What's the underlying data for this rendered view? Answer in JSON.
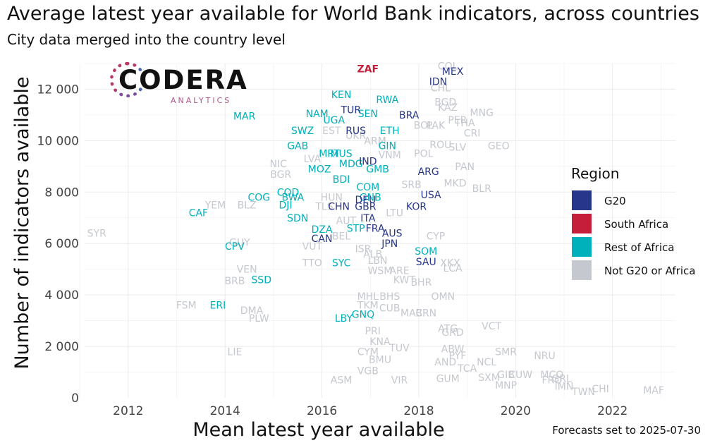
{
  "title": "Average latest year available for World Bank indicators, across countries",
  "subtitle": "City data merged into the country level",
  "caption": "Forecasts set to 2025-07-30",
  "logo": {
    "name": "CODERA",
    "tagline": "ANALYTICS"
  },
  "chart_data": {
    "type": "scatter",
    "xlabel": "Mean latest year available",
    "ylabel": "Number of indicators available",
    "xlim": [
      2011.1,
      2023.3
    ],
    "ylim": [
      0,
      13000
    ],
    "xticks": [
      {
        "value": 2012,
        "label": "2012"
      },
      {
        "value": 2014,
        "label": "2014"
      },
      {
        "value": 2016,
        "label": "2016"
      },
      {
        "value": 2018,
        "label": "2018"
      },
      {
        "value": 2020,
        "label": "2020"
      },
      {
        "value": 2022,
        "label": "2022"
      }
    ],
    "yticks": [
      {
        "value": 0,
        "label": "0"
      },
      {
        "value": 2000,
        "label": "2 000"
      },
      {
        "value": 4000,
        "label": "4 000"
      },
      {
        "value": 6000,
        "label": "6 000"
      },
      {
        "value": 8000,
        "label": "8 000"
      },
      {
        "value": 10000,
        "label": "10 000"
      },
      {
        "value": 12000,
        "label": "12 000"
      }
    ],
    "grid": true,
    "legend": {
      "title": "Region",
      "position": "right",
      "entries": [
        {
          "name": "G20",
          "color": "#27368a"
        },
        {
          "name": "South Africa",
          "color": "#c41e3a"
        },
        {
          "name": "Rest of Africa",
          "color": "#00b0bb"
        },
        {
          "name": "Not G20 or Africa",
          "color": "#c5c8ce"
        }
      ]
    },
    "points": [
      {
        "label": "ZAF",
        "x": 2016.95,
        "y": 12800,
        "group": "South Africa"
      },
      {
        "label": "MEX",
        "x": 2018.7,
        "y": 12700,
        "group": "G20"
      },
      {
        "label": "IDN",
        "x": 2018.4,
        "y": 12300,
        "group": "G20"
      },
      {
        "label": "TUR",
        "x": 2016.6,
        "y": 11200,
        "group": "G20"
      },
      {
        "label": "BRA",
        "x": 2017.8,
        "y": 11000,
        "group": "G20"
      },
      {
        "label": "RUS",
        "x": 2016.7,
        "y": 10400,
        "group": "G20"
      },
      {
        "label": "IND",
        "x": 2016.95,
        "y": 9200,
        "group": "G20"
      },
      {
        "label": "ARG",
        "x": 2018.2,
        "y": 8800,
        "group": "G20"
      },
      {
        "label": "USA",
        "x": 2018.25,
        "y": 7900,
        "group": "G20"
      },
      {
        "label": "DEU",
        "x": 2016.9,
        "y": 7700,
        "group": "G20"
      },
      {
        "label": "CHN",
        "x": 2016.35,
        "y": 7450,
        "group": "G20"
      },
      {
        "label": "GBR",
        "x": 2016.9,
        "y": 7450,
        "group": "G20"
      },
      {
        "label": "KOR",
        "x": 2017.95,
        "y": 7450,
        "group": "G20"
      },
      {
        "label": "ITA",
        "x": 2016.95,
        "y": 7000,
        "group": "G20"
      },
      {
        "label": "FRA",
        "x": 2017.1,
        "y": 6600,
        "group": "G20"
      },
      {
        "label": "AUS",
        "x": 2017.45,
        "y": 6400,
        "group": "G20"
      },
      {
        "label": "CAN",
        "x": 2016,
        "y": 6200,
        "group": "G20"
      },
      {
        "label": "JPN",
        "x": 2017.4,
        "y": 6000,
        "group": "G20"
      },
      {
        "label": "SAU",
        "x": 2018.15,
        "y": 5300,
        "group": "G20"
      },
      {
        "label": "KEN",
        "x": 2016.4,
        "y": 11800,
        "group": "Rest of Africa"
      },
      {
        "label": "RWA",
        "x": 2017.35,
        "y": 11600,
        "group": "Rest of Africa"
      },
      {
        "label": "NAM",
        "x": 2015.9,
        "y": 11050,
        "group": "Rest of Africa"
      },
      {
        "label": "SEN",
        "x": 2016.95,
        "y": 11050,
        "group": "Rest of Africa"
      },
      {
        "label": "UGA",
        "x": 2016.25,
        "y": 10800,
        "group": "Rest of Africa"
      },
      {
        "label": "MAR",
        "x": 2014.4,
        "y": 10950,
        "group": "Rest of Africa"
      },
      {
        "label": "SWZ",
        "x": 2015.6,
        "y": 10400,
        "group": "Rest of Africa"
      },
      {
        "label": "ETH",
        "x": 2017.4,
        "y": 10400,
        "group": "Rest of Africa"
      },
      {
        "label": "GAB",
        "x": 2015.5,
        "y": 9800,
        "group": "Rest of Africa"
      },
      {
        "label": "GIN",
        "x": 2017.35,
        "y": 9800,
        "group": "Rest of Africa"
      },
      {
        "label": "MRT",
        "x": 2016.15,
        "y": 9500,
        "group": "Rest of Africa"
      },
      {
        "label": "MUS",
        "x": 2016.4,
        "y": 9500,
        "group": "Rest of Africa"
      },
      {
        "label": "MOZ",
        "x": 2015.95,
        "y": 8900,
        "group": "Rest of Africa"
      },
      {
        "label": "MDG",
        "x": 2016.6,
        "y": 9100,
        "group": "Rest of Africa"
      },
      {
        "label": "GMB",
        "x": 2017.15,
        "y": 8900,
        "group": "Rest of Africa"
      },
      {
        "label": "BDI",
        "x": 2016.4,
        "y": 8500,
        "group": "Rest of Africa"
      },
      {
        "label": "COM",
        "x": 2016.95,
        "y": 8200,
        "group": "Rest of Africa"
      },
      {
        "label": "GNB",
        "x": 2017,
        "y": 7800,
        "group": "Rest of Africa"
      },
      {
        "label": "COG",
        "x": 2014.7,
        "y": 7800,
        "group": "Rest of Africa"
      },
      {
        "label": "COD",
        "x": 2015.3,
        "y": 8000,
        "group": "Rest of Africa"
      },
      {
        "label": "BWA",
        "x": 2015.4,
        "y": 7800,
        "group": "Rest of Africa"
      },
      {
        "label": "DJI",
        "x": 2015.25,
        "y": 7500,
        "group": "Rest of Africa"
      },
      {
        "label": "CAF",
        "x": 2013.45,
        "y": 7200,
        "group": "Rest of Africa"
      },
      {
        "label": "SDN",
        "x": 2015.5,
        "y": 7000,
        "group": "Rest of Africa"
      },
      {
        "label": "DZA",
        "x": 2016,
        "y": 6550,
        "group": "Rest of Africa"
      },
      {
        "label": "STP",
        "x": 2016.7,
        "y": 6600,
        "group": "Rest of Africa"
      },
      {
        "label": "CPV",
        "x": 2014.2,
        "y": 5900,
        "group": "Rest of Africa"
      },
      {
        "label": "SOM",
        "x": 2018.15,
        "y": 5700,
        "group": "Rest of Africa"
      },
      {
        "label": "SYC",
        "x": 2016.4,
        "y": 5250,
        "group": "Rest of Africa"
      },
      {
        "label": "SSD",
        "x": 2014.75,
        "y": 4600,
        "group": "Rest of Africa"
      },
      {
        "label": "ERI",
        "x": 2013.85,
        "y": 3600,
        "group": "Rest of Africa"
      },
      {
        "label": "LBY",
        "x": 2016.45,
        "y": 3100,
        "group": "Rest of Africa"
      },
      {
        "label": "GNQ",
        "x": 2016.85,
        "y": 3250,
        "group": "Rest of Africa"
      },
      {
        "label": "COL",
        "x": 2018.6,
        "y": 12900,
        "group": "Not G20 or Africa"
      },
      {
        "label": "CHL",
        "x": 2018.45,
        "y": 12050,
        "group": "Not G20 or Africa"
      },
      {
        "label": "BGD",
        "x": 2018.55,
        "y": 11500,
        "group": "Not G20 or Africa"
      },
      {
        "label": "KAZ",
        "x": 2018.6,
        "y": 11300,
        "group": "Not G20 or Africa"
      },
      {
        "label": "MNG",
        "x": 2019.3,
        "y": 11100,
        "group": "Not G20 or Africa"
      },
      {
        "label": "PER",
        "x": 2018.8,
        "y": 10800,
        "group": "Not G20 or Africa"
      },
      {
        "label": "THA",
        "x": 2018.95,
        "y": 10700,
        "group": "Not G20 or Africa"
      },
      {
        "label": "CRI",
        "x": 2019.1,
        "y": 10300,
        "group": "Not G20 or Africa"
      },
      {
        "label": "BOL",
        "x": 2018.1,
        "y": 10600,
        "group": "Not G20 or Africa"
      },
      {
        "label": "PAK",
        "x": 2018.35,
        "y": 10600,
        "group": "Not G20 or Africa"
      },
      {
        "label": "GEO",
        "x": 2019.65,
        "y": 9800,
        "group": "Not G20 or Africa"
      },
      {
        "label": "SLV",
        "x": 2018.8,
        "y": 9750,
        "group": "Not G20 or Africa"
      },
      {
        "label": "ROU",
        "x": 2018.45,
        "y": 9850,
        "group": "Not G20 or Africa"
      },
      {
        "label": "POL",
        "x": 2018.1,
        "y": 9500,
        "group": "Not G20 or Africa"
      },
      {
        "label": "VNM",
        "x": 2017.4,
        "y": 9450,
        "group": "Not G20 or Africa"
      },
      {
        "label": "PAN",
        "x": 2018.95,
        "y": 9000,
        "group": "Not G20 or Africa"
      },
      {
        "label": "NIC",
        "x": 2015.1,
        "y": 9100,
        "group": "Not G20 or Africa"
      },
      {
        "label": "BGR",
        "x": 2015.15,
        "y": 8700,
        "group": "Not G20 or Africa"
      },
      {
        "label": "SRB",
        "x": 2017.85,
        "y": 8300,
        "group": "Not G20 or Africa"
      },
      {
        "label": "MKD",
        "x": 2018.75,
        "y": 8350,
        "group": "Not G20 or Africa"
      },
      {
        "label": "BLR",
        "x": 2019.3,
        "y": 8150,
        "group": "Not G20 or Africa"
      },
      {
        "label": "YEM",
        "x": 2013.8,
        "y": 7500,
        "group": "Not G20 or Africa"
      },
      {
        "label": "BLZ",
        "x": 2014.45,
        "y": 7500,
        "group": "Not G20 or Africa"
      },
      {
        "label": "TLS",
        "x": 2016.05,
        "y": 7450,
        "group": "Not G20 or Africa"
      },
      {
        "label": "AUT",
        "x": 2016.5,
        "y": 6900,
        "group": "Not G20 or Africa"
      },
      {
        "label": "CYP",
        "x": 2018.35,
        "y": 6300,
        "group": "Not G20 or Africa"
      },
      {
        "label": "SYR",
        "x": 2011.35,
        "y": 6400,
        "group": "Not G20 or Africa"
      },
      {
        "label": "GUY",
        "x": 2014.3,
        "y": 6050,
        "group": "Not G20 or Africa"
      },
      {
        "label": "VUT",
        "x": 2015.8,
        "y": 5900,
        "group": "Not G20 or Africa"
      },
      {
        "label": "ISR",
        "x": 2016.85,
        "y": 5800,
        "group": "Not G20 or Africa"
      },
      {
        "label": "LBN",
        "x": 2017.15,
        "y": 5350,
        "group": "Not G20 or Africa"
      },
      {
        "label": "TTO",
        "x": 2015.8,
        "y": 5250,
        "group": "Not G20 or Africa"
      },
      {
        "label": "XKX",
        "x": 2018.65,
        "y": 5250,
        "group": "Not G20 or Africa"
      },
      {
        "label": "LCA",
        "x": 2018.7,
        "y": 5050,
        "group": "Not G20 or Africa"
      },
      {
        "label": "WSM",
        "x": 2017.2,
        "y": 4950,
        "group": "Not G20 or Africa"
      },
      {
        "label": "ARE",
        "x": 2017.6,
        "y": 4950,
        "group": "Not G20 or Africa"
      },
      {
        "label": "VEN",
        "x": 2014.45,
        "y": 5000,
        "group": "Not G20 or Africa"
      },
      {
        "label": "BRB",
        "x": 2014.2,
        "y": 4550,
        "group": "Not G20 or Africa"
      },
      {
        "label": "KWT",
        "x": 2017.7,
        "y": 4600,
        "group": "Not G20 or Africa"
      },
      {
        "label": "BHR",
        "x": 2018.05,
        "y": 4500,
        "group": "Not G20 or Africa"
      },
      {
        "label": "MHL",
        "x": 2016.95,
        "y": 3950,
        "group": "Not G20 or Africa"
      },
      {
        "label": "BHS",
        "x": 2017.4,
        "y": 3950,
        "group": "Not G20 or Africa"
      },
      {
        "label": "OMN",
        "x": 2018.5,
        "y": 3950,
        "group": "Not G20 or Africa"
      },
      {
        "label": "TKM",
        "x": 2016.95,
        "y": 3600,
        "group": "Not G20 or Africa"
      },
      {
        "label": "CUB",
        "x": 2017.4,
        "y": 3500,
        "group": "Not G20 or Africa"
      },
      {
        "label": "MAC",
        "x": 2017.85,
        "y": 3300,
        "group": "Not G20 or Africa"
      },
      {
        "label": "BRN",
        "x": 2018.15,
        "y": 3300,
        "group": "Not G20 or Africa"
      },
      {
        "label": "FSM",
        "x": 2013.2,
        "y": 3600,
        "group": "Not G20 or Africa"
      },
      {
        "label": "DMA",
        "x": 2014.55,
        "y": 3400,
        "group": "Not G20 or Africa"
      },
      {
        "label": "PLW",
        "x": 2014.7,
        "y": 3100,
        "group": "Not G20 or Africa"
      },
      {
        "label": "VCT",
        "x": 2019.5,
        "y": 2800,
        "group": "Not G20 or Africa"
      },
      {
        "label": "ATG",
        "x": 2018.6,
        "y": 2700,
        "group": "Not G20 or Africa"
      },
      {
        "label": "GRD",
        "x": 2018.7,
        "y": 2550,
        "group": "Not G20 or Africa"
      },
      {
        "label": "PRI",
        "x": 2017.05,
        "y": 2600,
        "group": "Not G20 or Africa"
      },
      {
        "label": "KNA",
        "x": 2017.2,
        "y": 2200,
        "group": "Not G20 or Africa"
      },
      {
        "label": "TUV",
        "x": 2017.6,
        "y": 1950,
        "group": "Not G20 or Africa"
      },
      {
        "label": "CYM",
        "x": 2016.95,
        "y": 1800,
        "group": "Not G20 or Africa"
      },
      {
        "label": "ABW",
        "x": 2018.7,
        "y": 1900,
        "group": "Not G20 or Africa"
      },
      {
        "label": "SMR",
        "x": 2019.8,
        "y": 1800,
        "group": "Not G20 or Africa"
      },
      {
        "label": "NRU",
        "x": 2020.6,
        "y": 1650,
        "group": "Not G20 or Africa"
      },
      {
        "label": "PYF",
        "x": 2018.8,
        "y": 1650,
        "group": "Not G20 or Africa"
      },
      {
        "label": "BMU",
        "x": 2017.2,
        "y": 1500,
        "group": "Not G20 or Africa"
      },
      {
        "label": "AND",
        "x": 2018.55,
        "y": 1400,
        "group": "Not G20 or Africa"
      },
      {
        "label": "NCL",
        "x": 2019.4,
        "y": 1400,
        "group": "Not G20 or Africa"
      },
      {
        "label": "LIE",
        "x": 2014.2,
        "y": 1800,
        "group": "Not G20 or Africa"
      },
      {
        "label": "TCA",
        "x": 2019,
        "y": 1150,
        "group": "Not G20 or Africa"
      },
      {
        "label": "VGB",
        "x": 2016.95,
        "y": 1050,
        "group": "Not G20 or Africa"
      },
      {
        "label": "GIB",
        "x": 2019.8,
        "y": 900,
        "group": "Not G20 or Africa"
      },
      {
        "label": "CUW",
        "x": 2020.1,
        "y": 900,
        "group": "Not G20 or Africa"
      },
      {
        "label": "MCO",
        "x": 2020.75,
        "y": 900,
        "group": "Not G20 or Africa"
      },
      {
        "label": "SXM",
        "x": 2019.45,
        "y": 800,
        "group": "Not G20 or Africa"
      },
      {
        "label": "FRO",
        "x": 2020.75,
        "y": 700,
        "group": "Not G20 or Africa"
      },
      {
        "label": "GRL",
        "x": 2020.95,
        "y": 750,
        "group": "Not G20 or Africa"
      },
      {
        "label": "ASM",
        "x": 2016.4,
        "y": 700,
        "group": "Not G20 or Africa"
      },
      {
        "label": "VIR",
        "x": 2017.6,
        "y": 700,
        "group": "Not G20 or Africa"
      },
      {
        "label": "GUM",
        "x": 2018.6,
        "y": 750,
        "group": "Not G20 or Africa"
      },
      {
        "label": "MNP",
        "x": 2019.8,
        "y": 500,
        "group": "Not G20 or Africa"
      },
      {
        "label": "IMN",
        "x": 2021,
        "y": 450,
        "group": "Not G20 or Africa"
      },
      {
        "label": "CHI",
        "x": 2021.75,
        "y": 350,
        "group": "Not G20 or Africa"
      },
      {
        "label": "TWN",
        "x": 2021.4,
        "y": 250,
        "group": "Not G20 or Africa"
      },
      {
        "label": "MAF",
        "x": 2022.85,
        "y": 300,
        "group": "Not G20 or Africa"
      },
      {
        "label": "EST",
        "x": 2016.2,
        "y": 10400,
        "group": "Not G20 or Africa"
      },
      {
        "label": "UKR",
        "x": 2016.7,
        "y": 10200,
        "group": "Not G20 or Africa"
      },
      {
        "label": "ARM",
        "x": 2017.1,
        "y": 10000,
        "group": "Not G20 or Africa"
      },
      {
        "label": "LVA",
        "x": 2015.8,
        "y": 9300,
        "group": "Not G20 or Africa"
      },
      {
        "label": "HUN",
        "x": 2016.2,
        "y": 7800,
        "group": "Not G20 or Africa"
      },
      {
        "label": "LTU",
        "x": 2017.5,
        "y": 7200,
        "group": "Not G20 or Africa"
      },
      {
        "label": "BEL",
        "x": 2016.4,
        "y": 6300,
        "group": "Not G20 or Africa"
      },
      {
        "label": "ALB",
        "x": 2017.05,
        "y": 5600,
        "group": "Not G20 or Africa"
      }
    ]
  }
}
